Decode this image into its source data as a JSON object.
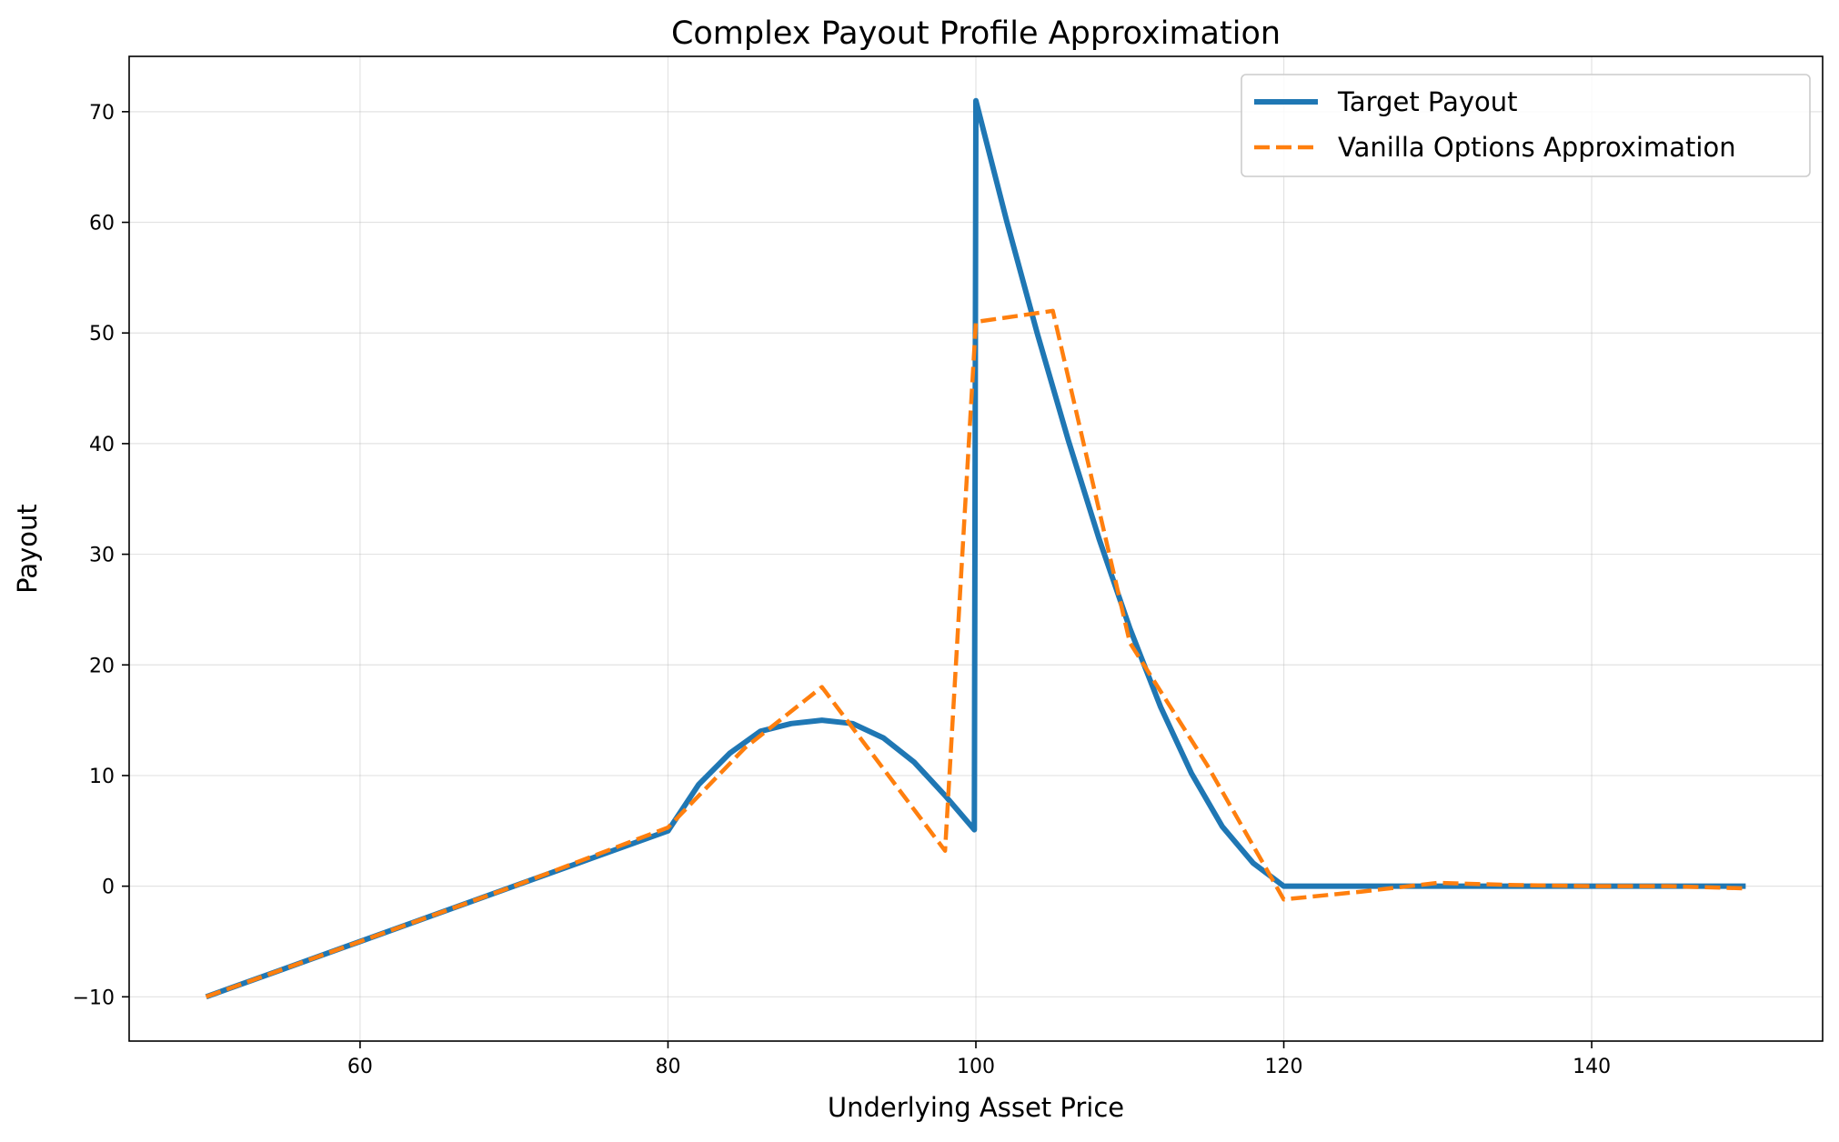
{
  "chart_data": {
    "type": "line",
    "title": "Complex Payout Profile Approximation",
    "xlabel": "Underlying Asset Price",
    "ylabel": "Payout",
    "xlim": [
      45,
      155
    ],
    "ylim": [
      -14,
      75
    ],
    "xticks": [
      60,
      80,
      100,
      120,
      140
    ],
    "yticks": [
      -10,
      0,
      10,
      20,
      30,
      40,
      50,
      60,
      70
    ],
    "grid": true,
    "legend_position": "top-right",
    "series": [
      {
        "name": "Target Payout",
        "color": "#1f77b4",
        "style": "solid",
        "x": [
          50,
          55,
          60,
          65,
          70,
          75,
          80,
          82,
          84,
          86,
          88,
          90,
          92,
          94,
          96,
          98,
          99.9,
          100,
          102,
          104,
          106,
          108,
          110,
          112,
          114,
          116,
          118,
          120,
          125,
          130,
          135,
          140,
          145,
          150
        ],
        "y": [
          -10,
          -7.5,
          -5,
          -2.5,
          0,
          2.5,
          5,
          9.2,
          12,
          14,
          14.7,
          15,
          14.7,
          13.4,
          11.2,
          8.2,
          5.1,
          71,
          60.1,
          49.9,
          40.3,
          31.4,
          23.3,
          16.2,
          10.2,
          5.4,
          2.1,
          0,
          0,
          0,
          0,
          0,
          0,
          0
        ]
      },
      {
        "name": "Vanilla Options Approximation",
        "color": "#ff7f0e",
        "style": "dashed",
        "x": [
          50,
          60,
          70,
          80,
          85,
          90,
          98,
          100,
          105,
          110,
          115,
          120,
          125,
          130,
          135,
          140,
          145,
          150
        ],
        "y": [
          -10,
          -5,
          0,
          5.3,
          12.5,
          18,
          3.2,
          51,
          52,
          22,
          11,
          -1.2,
          -0.5,
          0.3,
          0.1,
          0,
          0,
          -0.2
        ]
      }
    ]
  }
}
